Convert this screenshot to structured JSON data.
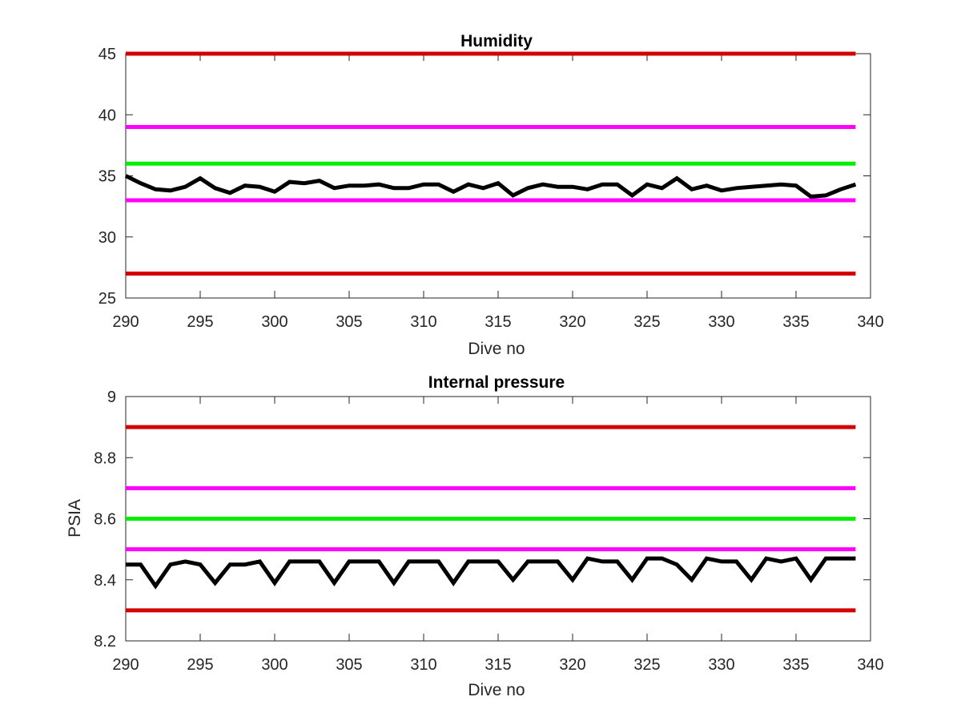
{
  "chart_data": [
    {
      "type": "line",
      "title": "Humidity",
      "xlabel": "Dive no",
      "ylabel": "",
      "xlim": [
        290,
        340
      ],
      "ylim": [
        25,
        45
      ],
      "xticks": [
        "290",
        "295",
        "300",
        "305",
        "310",
        "315",
        "320",
        "325",
        "330",
        "335",
        "340"
      ],
      "yticks": [
        "25",
        "30",
        "35",
        "40",
        "45"
      ],
      "reference_lines": [
        {
          "value": 45,
          "color": "#d40000"
        },
        {
          "value": 39,
          "color": "#ff00ff"
        },
        {
          "value": 36,
          "color": "#00ee00"
        },
        {
          "value": 33,
          "color": "#ff00ff"
        },
        {
          "value": 27,
          "color": "#d40000"
        }
      ],
      "series": [
        {
          "color": "#000000",
          "x": [
            290,
            291,
            292,
            293,
            294,
            295,
            296,
            297,
            298,
            299,
            300,
            301,
            302,
            303,
            304,
            305,
            306,
            307,
            308,
            309,
            310,
            311,
            312,
            313,
            314,
            315,
            316,
            317,
            318,
            319,
            320,
            321,
            322,
            323,
            324,
            325,
            326,
            327,
            328,
            329,
            330,
            331,
            332,
            333,
            334,
            335,
            336,
            337,
            338,
            339
          ],
          "y": [
            35.0,
            34.4,
            33.9,
            33.8,
            34.1,
            34.8,
            34.0,
            33.6,
            34.2,
            34.1,
            33.7,
            34.5,
            34.4,
            34.6,
            34.0,
            34.2,
            34.2,
            34.3,
            34.0,
            34.0,
            34.3,
            34.3,
            33.7,
            34.3,
            34.0,
            34.4,
            33.4,
            34.0,
            34.3,
            34.1,
            34.1,
            33.9,
            34.3,
            34.3,
            33.4,
            34.3,
            34.0,
            34.8,
            33.9,
            34.2,
            33.8,
            34.0,
            34.1,
            34.2,
            34.3,
            34.2,
            33.3,
            33.4,
            33.9,
            34.3
          ]
        }
      ]
    },
    {
      "type": "line",
      "title": "Internal pressure",
      "xlabel": "Dive no",
      "ylabel": "PSIA",
      "xlim": [
        290,
        340
      ],
      "ylim": [
        8.2,
        9.0
      ],
      "xticks": [
        "290",
        "295",
        "300",
        "305",
        "310",
        "315",
        "320",
        "325",
        "330",
        "335",
        "340"
      ],
      "yticks": [
        "8.2",
        "8.4",
        "8.6",
        "8.8",
        "9"
      ],
      "reference_lines": [
        {
          "value": 8.9,
          "color": "#d40000"
        },
        {
          "value": 8.7,
          "color": "#ff00ff"
        },
        {
          "value": 8.6,
          "color": "#00ee00"
        },
        {
          "value": 8.5,
          "color": "#ff00ff"
        },
        {
          "value": 8.3,
          "color": "#d40000"
        }
      ],
      "series": [
        {
          "color": "#000000",
          "x": [
            290,
            291,
            292,
            293,
            294,
            295,
            296,
            297,
            298,
            299,
            300,
            301,
            302,
            303,
            304,
            305,
            306,
            307,
            308,
            309,
            310,
            311,
            312,
            313,
            314,
            315,
            316,
            317,
            318,
            319,
            320,
            321,
            322,
            323,
            324,
            325,
            326,
            327,
            328,
            329,
            330,
            331,
            332,
            333,
            334,
            335,
            336,
            337,
            338,
            339
          ],
          "y": [
            8.45,
            8.45,
            8.38,
            8.45,
            8.46,
            8.45,
            8.39,
            8.45,
            8.45,
            8.46,
            8.39,
            8.46,
            8.46,
            8.46,
            8.39,
            8.46,
            8.46,
            8.46,
            8.39,
            8.46,
            8.46,
            8.46,
            8.39,
            8.46,
            8.46,
            8.46,
            8.4,
            8.46,
            8.46,
            8.46,
            8.4,
            8.47,
            8.46,
            8.46,
            8.4,
            8.47,
            8.47,
            8.45,
            8.4,
            8.47,
            8.46,
            8.46,
            8.4,
            8.47,
            8.46,
            8.47,
            8.4,
            8.47,
            8.47,
            8.47
          ]
        }
      ]
    }
  ]
}
